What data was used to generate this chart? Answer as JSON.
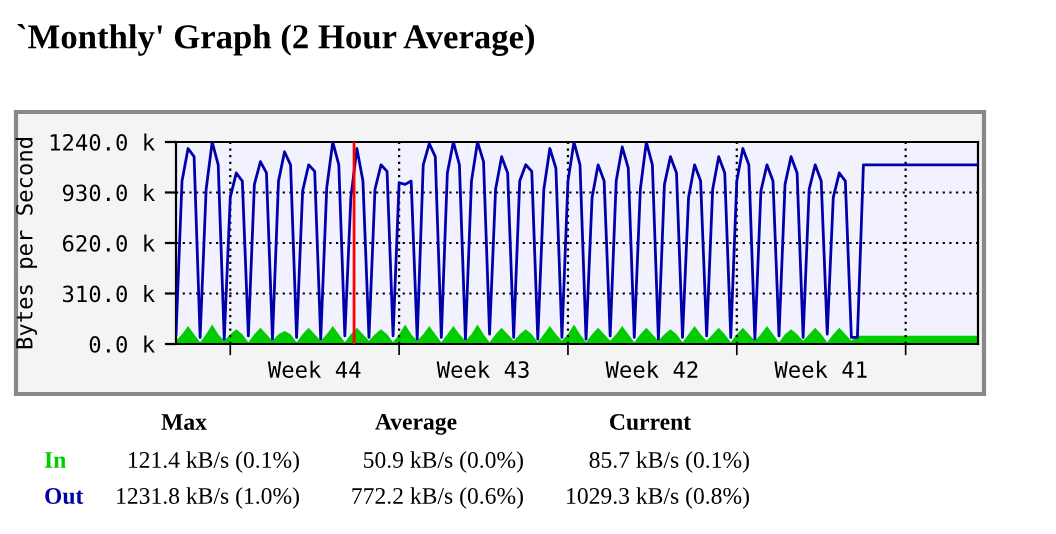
{
  "chart_data": {
    "type": "line",
    "title": "`Monthly' Graph (2 Hour Average)",
    "ylabel": "Bytes per Second",
    "categories": [
      null,
      null,
      null,
      null,
      null,
      null,
      null,
      null,
      null,
      null,
      null,
      null,
      null,
      null,
      null,
      null,
      null,
      null,
      null,
      null,
      null,
      null,
      null,
      "Week 44",
      null,
      null,
      null,
      null,
      null,
      null,
      null,
      null,
      null,
      null,
      null,
      null,
      null,
      null,
      null,
      null,
      null,
      null,
      null,
      null,
      null,
      null,
      null,
      null,
      null,
      null,
      null,
      "Week 43",
      null,
      null,
      null,
      null,
      null,
      null,
      null,
      null,
      null,
      null,
      null,
      null,
      null,
      null,
      null,
      null,
      null,
      null,
      null,
      null,
      null,
      null,
      null,
      null,
      null,
      null,
      null,
      "Week 42",
      null,
      null,
      null,
      null,
      null,
      null,
      null,
      null,
      null,
      null,
      null,
      null,
      null,
      null,
      null,
      null,
      null,
      null,
      null,
      null,
      null,
      null,
      null,
      null,
      null,
      null,
      null,
      "Week 41",
      null,
      null,
      null,
      null,
      null,
      null,
      null,
      null,
      null,
      null,
      null,
      null,
      null,
      null,
      null,
      null,
      null,
      null,
      null,
      null,
      null,
      null,
      null,
      null,
      null,
      null
    ],
    "ylim": [
      0,
      1240
    ],
    "yticks": [
      {
        "value": 0,
        "label": "0.0 k"
      },
      {
        "value": 310,
        "label": "310.0 k"
      },
      {
        "value": 620,
        "label": "620.0 k"
      },
      {
        "value": 930,
        "label": "930.0 k"
      },
      {
        "value": 1240,
        "label": "1240.0 k"
      }
    ],
    "grid": true,
    "legend": "bottom left",
    "series": [
      {
        "name": "In",
        "type": "area",
        "color": "#00cc00",
        "values": [
          20,
          60,
          110,
          60,
          10,
          60,
          120,
          60,
          20,
          60,
          90,
          60,
          10,
          60,
          100,
          60,
          20,
          60,
          80,
          60,
          10,
          60,
          100,
          60,
          20,
          60,
          110,
          60,
          10,
          60,
          100,
          60,
          20,
          60,
          90,
          60,
          10,
          60,
          120,
          60,
          20,
          60,
          110,
          60,
          10,
          60,
          110,
          60,
          20,
          60,
          120,
          60,
          10,
          60,
          100,
          60,
          20,
          60,
          90,
          60,
          10,
          60,
          110,
          60,
          20,
          60,
          120,
          60,
          10,
          60,
          100,
          60,
          20,
          60,
          110,
          60,
          10,
          60,
          100,
          60,
          20,
          60,
          90,
          60,
          10,
          60,
          110,
          60,
          20,
          60,
          100,
          60,
          10,
          60,
          100,
          60,
          20,
          60,
          110,
          60,
          10,
          60,
          90,
          60,
          20,
          60,
          100,
          60,
          10,
          60,
          100,
          60,
          20,
          50,
          50,
          50,
          50,
          50,
          50,
          50,
          50,
          50,
          50,
          50,
          50,
          50,
          50,
          50,
          50,
          50,
          50,
          50,
          50,
          50
        ]
      },
      {
        "name": "Out",
        "color": "#0000aa",
        "values": [
          60,
          1000,
          1200,
          1150,
          40,
          950,
          1240,
          1100,
          30,
          900,
          1050,
          1000,
          50,
          980,
          1120,
          1050,
          30,
          1000,
          1180,
          1100,
          40,
          940,
          1100,
          1060,
          30,
          960,
          1240,
          1100,
          50,
          900,
          1200,
          1000,
          40,
          950,
          1100,
          1060,
          50,
          990,
          980,
          1000,
          30,
          1100,
          1230,
          1150,
          40,
          1050,
          1240,
          1100,
          30,
          1000,
          1240,
          1120,
          60,
          950,
          1150,
          1050,
          40,
          1000,
          1100,
          1060,
          30,
          950,
          1200,
          1080,
          40,
          1000,
          1240,
          1100,
          30,
          900,
          1100,
          1000,
          50,
          1000,
          1210,
          1080,
          40,
          950,
          1240,
          1100,
          30,
          980,
          1150,
          1050,
          40,
          900,
          1100,
          1000,
          50,
          950,
          1150,
          1050,
          40,
          1000,
          1200,
          1100,
          30,
          940,
          1100,
          1000,
          50,
          980,
          1150,
          1050,
          40,
          950,
          1100,
          1000,
          60,
          900,
          1050,
          1000,
          40,
          40,
          1100,
          1100,
          1100,
          1100,
          1100,
          1100,
          1100,
          1100,
          1100,
          1100,
          1100,
          1100,
          1100,
          1100,
          1100,
          1100,
          1100,
          1100,
          1100,
          1100
        ]
      }
    ],
    "annotations": [
      "Max",
      "Average",
      "Current",
      "121.4 kB/s (0.1%)",
      "50.9 kB/s (0.0%)",
      "85.7 kB/s (0.1%)",
      "1231.8 kB/s (1.0%)",
      "772.2 kB/s (0.6%)",
      "1029.3 kB/s (0.8%)"
    ]
  }
}
